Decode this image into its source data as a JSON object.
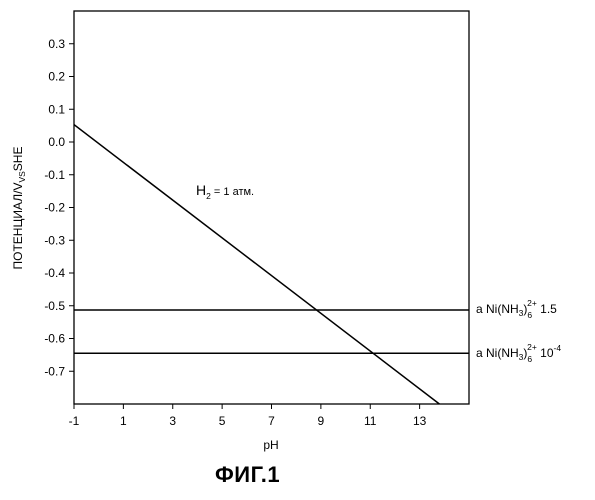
{
  "figure": {
    "caption": "ФИГ.1"
  },
  "chart_data": {
    "type": "line",
    "title": "",
    "xlabel": "pH",
    "ylabel": "ПОТЕНЦИАЛ/V vs SHE",
    "ylabel_main": "ПОТЕНЦИАЛ/V",
    "ylabel_sub": "VS",
    "ylabel_tail": "SHE",
    "xlim": [
      -1,
      15
    ],
    "ylim": [
      -0.8,
      0.4
    ],
    "x_ticks": [
      -1,
      1,
      3,
      5,
      7,
      9,
      11,
      13
    ],
    "y_ticks": [
      0.3,
      0.2,
      0.1,
      0.0,
      -0.1,
      -0.2,
      -0.3,
      -0.4,
      -0.5,
      -0.6,
      -0.7
    ],
    "x_tick_labels": [
      "-1",
      "1",
      "3",
      "5",
      "7",
      "9",
      "11",
      "13"
    ],
    "y_tick_labels": [
      "0.3",
      "0.2",
      "0.1",
      "0.0",
      "-0.1",
      "-0.2",
      "-0.3",
      "-0.4",
      "-0.5",
      "-0.6",
      "-0.7"
    ],
    "grid": false,
    "series": [
      {
        "name": "H2 = 1 атм.",
        "x": [
          -1,
          13.8
        ],
        "y": [
          0.053,
          -0.8
        ]
      },
      {
        "name": "a Ni(NH3)6 2+ 1.5",
        "x": [
          -1,
          15
        ],
        "y": [
          -0.513,
          -0.513
        ]
      },
      {
        "name": "a Ni(NH3)6 2+ 10-4",
        "x": [
          -1,
          15
        ],
        "y": [
          -0.645,
          -0.645
        ]
      }
    ],
    "annotations": {
      "h2": {
        "main": "H",
        "sub": "2",
        "rest": " = 1 атм."
      },
      "ni_high": {
        "prefix": "a Ni(NH",
        "sub3": "3",
        "close": ")",
        "sub6": "6",
        "sup": "2+",
        "value": " 1.5"
      },
      "ni_low": {
        "prefix": "a Ni(NH",
        "sub3": "3",
        "close": ")",
        "sub6": "6",
        "sup": "2+",
        "value": " 10",
        "exp": "-4"
      }
    }
  }
}
